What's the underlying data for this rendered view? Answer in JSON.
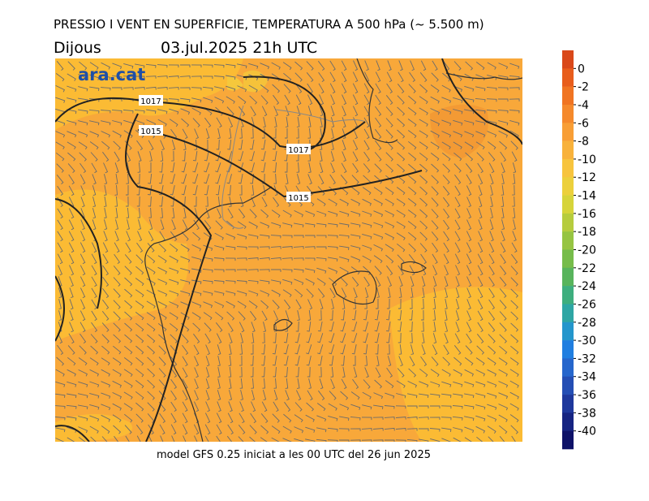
{
  "title": "PRESSIO I VENT EN SUPERFICIE, TEMPERATURA A 500 hPa (~ 5.500 m)",
  "day": "Dijous",
  "datetime": "03.jul.2025 21h UTC",
  "logo": "ara.cat",
  "footer": "model GFS 0.25 iniciat a les 00 UTC del 26 jun 2025",
  "isobar_labels": [
    "1017",
    "1015",
    "1017",
    "1015"
  ],
  "colorbar": {
    "labels": [
      0,
      -2,
      -4,
      -6,
      -8,
      -10,
      -12,
      -14,
      -16,
      -18,
      -20,
      -22,
      -24,
      -26,
      -28,
      -30,
      -32,
      -34,
      -36,
      -38,
      -40
    ],
    "colors": [
      "#d9481a",
      "#e85d1c",
      "#f07422",
      "#f5892c",
      "#f89e36",
      "#f8b23c",
      "#f7c43e",
      "#ecd03c",
      "#d6d43a",
      "#b6cc3e",
      "#96c442",
      "#76bc4a",
      "#58b45c",
      "#3eae7e",
      "#2ea6a4",
      "#2496cc",
      "#207ee0",
      "#2666cc",
      "#244eb4",
      "#1e389c",
      "#162482",
      "#0e1268"
    ]
  }
}
